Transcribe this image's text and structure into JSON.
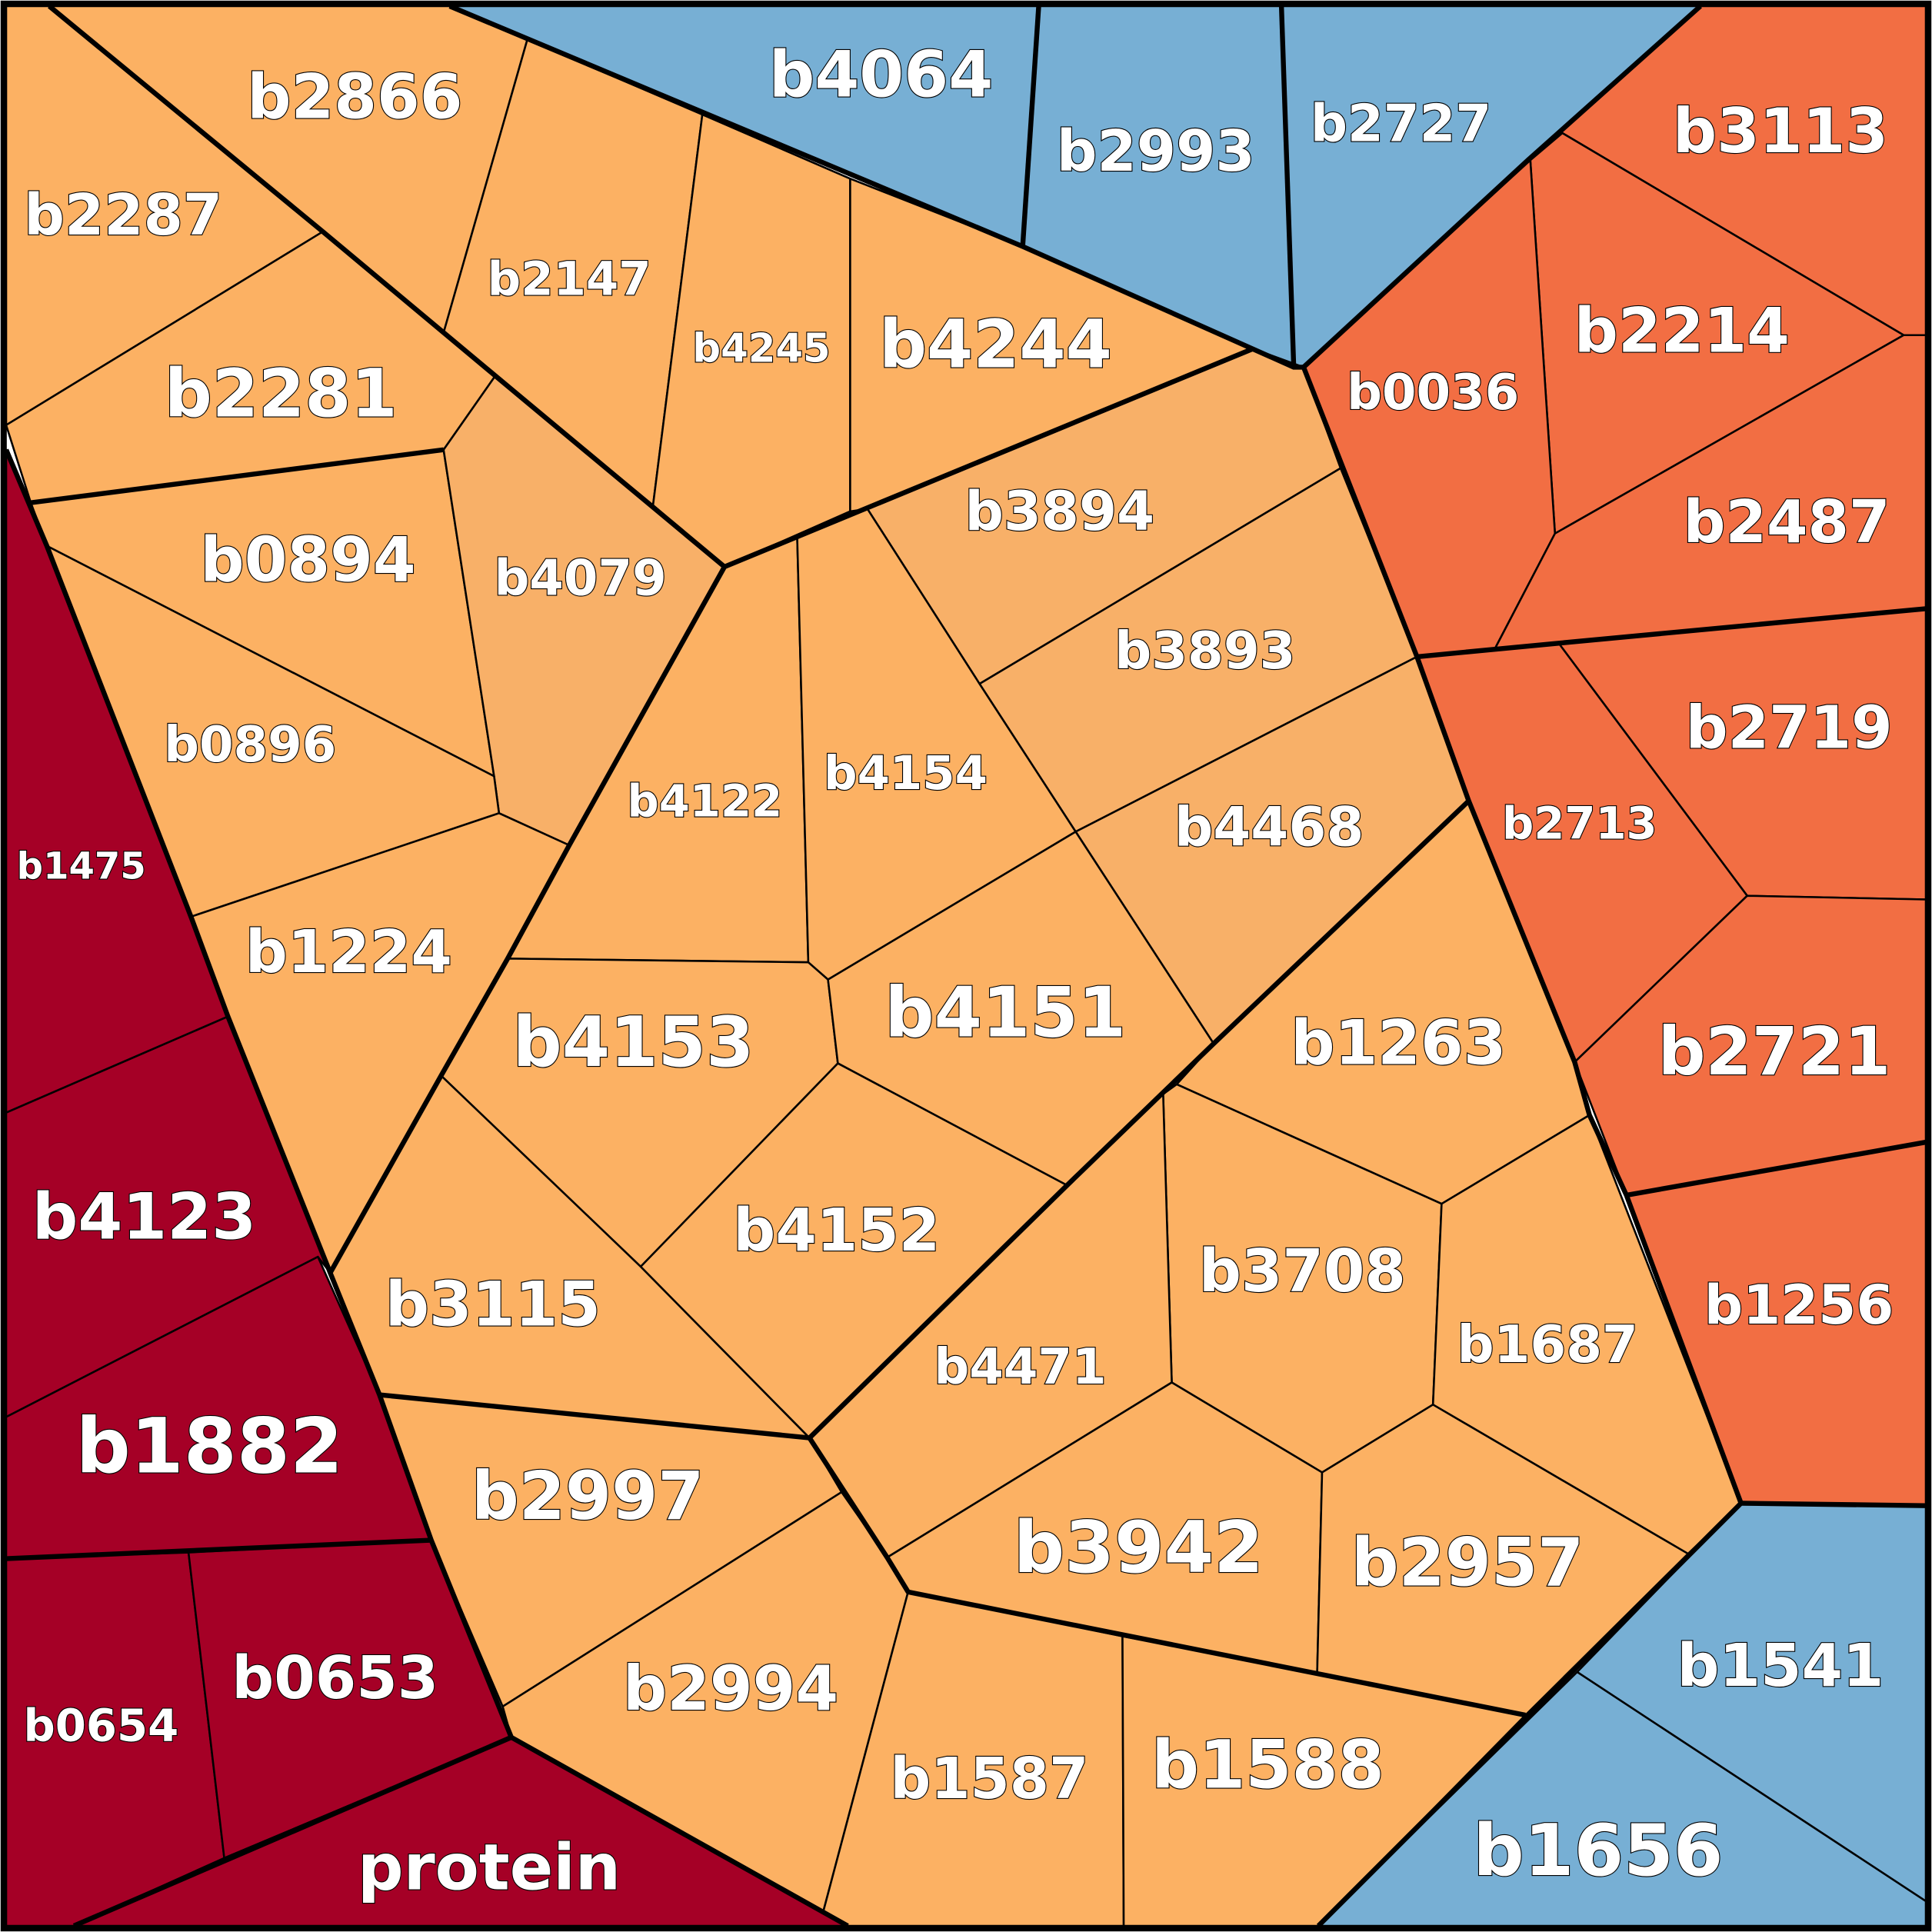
{
  "colors": {
    "orange": "#FCB163",
    "orange_light": "#F8B068",
    "orange_red": "#F26E43",
    "dark_red": "#A50026",
    "blue": "#77AFD4",
    "border": "#000000",
    "label_fill": "#FFFFFF"
  },
  "cells": [
    {
      "label": "b4064",
      "group": "blue"
    },
    {
      "label": "b2993",
      "group": "blue"
    },
    {
      "label": "b2727",
      "group": "blue"
    },
    {
      "label": "b3113",
      "group": "orange_red"
    },
    {
      "label": "b2214",
      "group": "orange_red"
    },
    {
      "label": "b0036",
      "group": "orange_red"
    },
    {
      "label": "b2487",
      "group": "orange_red"
    },
    {
      "label": "b2719",
      "group": "orange_red"
    },
    {
      "label": "b2713",
      "group": "orange_red"
    },
    {
      "label": "b2721",
      "group": "orange_red"
    },
    {
      "label": "b1256",
      "group": "orange_red"
    },
    {
      "label": "b1541",
      "group": "blue"
    },
    {
      "label": "b1656",
      "group": "blue"
    },
    {
      "label": "b2866",
      "group": "orange"
    },
    {
      "label": "b2287",
      "group": "orange"
    },
    {
      "label": "b2147",
      "group": "orange"
    },
    {
      "label": "b4245",
      "group": "orange"
    },
    {
      "label": "b4244",
      "group": "orange"
    },
    {
      "label": "b2281",
      "group": "orange"
    },
    {
      "label": "b0894",
      "group": "orange"
    },
    {
      "label": "b4079",
      "group": "orange_light"
    },
    {
      "label": "b3894",
      "group": "orange_light"
    },
    {
      "label": "b3893",
      "group": "orange_light"
    },
    {
      "label": "b0896",
      "group": "orange"
    },
    {
      "label": "b4122",
      "group": "orange"
    },
    {
      "label": "b4154",
      "group": "orange"
    },
    {
      "label": "b4468",
      "group": "orange_light"
    },
    {
      "label": "b1224",
      "group": "orange"
    },
    {
      "label": "b4153",
      "group": "orange"
    },
    {
      "label": "b4151",
      "group": "orange"
    },
    {
      "label": "b1263",
      "group": "orange"
    },
    {
      "label": "b3115",
      "group": "orange"
    },
    {
      "label": "b4152",
      "group": "orange"
    },
    {
      "label": "b3708",
      "group": "orange"
    },
    {
      "label": "b4471",
      "group": "orange"
    },
    {
      "label": "b1687",
      "group": "orange"
    },
    {
      "label": "b2997",
      "group": "orange"
    },
    {
      "label": "b3942",
      "group": "orange"
    },
    {
      "label": "b2957",
      "group": "orange"
    },
    {
      "label": "b2994",
      "group": "orange"
    },
    {
      "label": "b1587",
      "group": "orange"
    },
    {
      "label": "b1588",
      "group": "orange"
    },
    {
      "label": "b1475",
      "group": "dark_red"
    },
    {
      "label": "b4123",
      "group": "dark_red"
    },
    {
      "label": "b1882",
      "group": "dark_red"
    },
    {
      "label": "b0654",
      "group": "dark_red"
    },
    {
      "label": "b0653",
      "group": "dark_red"
    },
    {
      "label": "protein",
      "group": "dark_red"
    }
  ]
}
